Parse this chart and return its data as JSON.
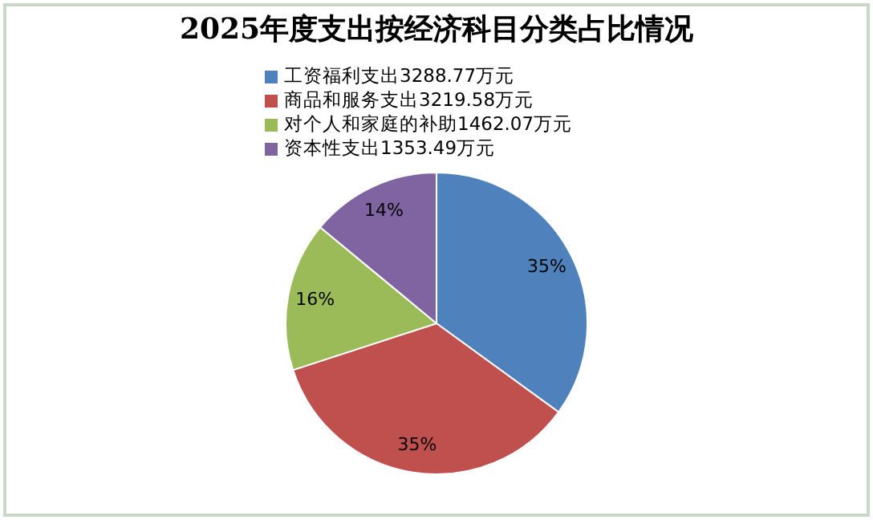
{
  "chart_data": {
    "type": "pie",
    "title": "2025年度支出按经济科目分类占比情况",
    "categories": [
      "工资福利支出3288.77万元",
      "商品和服务支出3219.58万元",
      "对个人和家庭的补助1462.07万元",
      "资本性支出1353.49万元"
    ],
    "values": [
      35,
      35,
      16,
      14
    ],
    "colors": [
      "#4f81bd",
      "#c0504d",
      "#9bbb59",
      "#8064a2"
    ],
    "value_labels": [
      "35%",
      "35%",
      "16%",
      "14%"
    ],
    "legend": "top"
  }
}
